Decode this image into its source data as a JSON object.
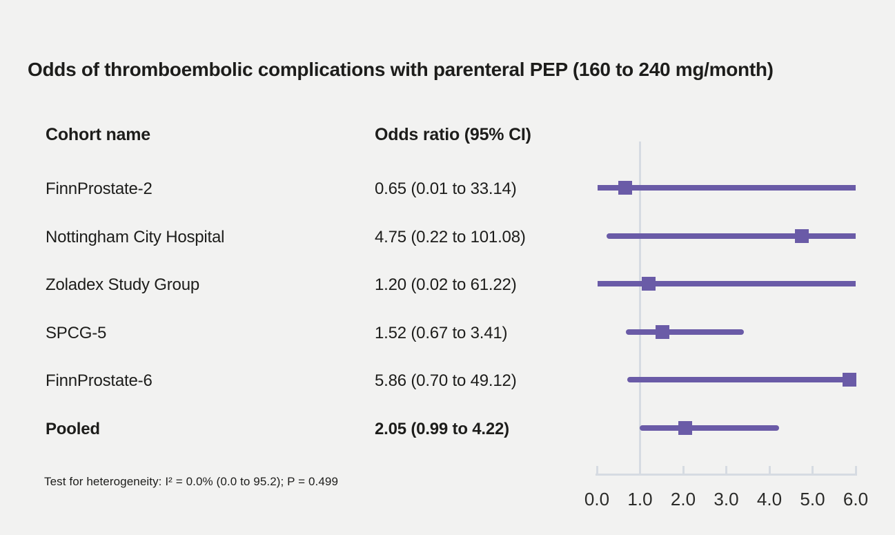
{
  "title": "Odds of thromboembolic complications with parenteral PEP (160 to 240 mg/month)",
  "columns": {
    "cohort": "Cohort name",
    "or": "Odds ratio (95% CI)"
  },
  "footnote": "Test for heterogeneity: I² = 0.0% (0.0 to 95.2); P = 0.499",
  "colors": {
    "accent": "#6A5BA7",
    "axis": "#D6DBE2",
    "background": "#F2F2F1",
    "text": "#1D1D1B"
  },
  "chart_data": {
    "type": "forest",
    "title": "Odds of thromboembolic complications with parenteral PEP (160 to 240 mg/month)",
    "x_axis": {
      "range": [
        0,
        6
      ],
      "tick_labels": [
        "0.0",
        "1.0",
        "2.0",
        "3.0",
        "4.0",
        "5.0",
        "6.0"
      ],
      "tick_values": [
        0,
        1,
        2,
        3,
        4,
        5,
        6
      ],
      "reference_line": 1.0
    },
    "rows": [
      {
        "cohort": "FinnProstate-2",
        "display": "0.65 (0.01 to 33.14)",
        "or": 0.65,
        "ci_low": 0.01,
        "ci_high": 33.14,
        "bold": false
      },
      {
        "cohort": "Nottingham City Hospital",
        "display": "4.75 (0.22 to 101.08)",
        "or": 4.75,
        "ci_low": 0.22,
        "ci_high": 101.08,
        "bold": false
      },
      {
        "cohort": "Zoladex Study Group",
        "display": "1.20 (0.02 to 61.22)",
        "or": 1.2,
        "ci_low": 0.02,
        "ci_high": 61.22,
        "bold": false
      },
      {
        "cohort": "SPCG-5",
        "display": "1.52 (0.67 to 3.41)",
        "or": 1.52,
        "ci_low": 0.67,
        "ci_high": 3.41,
        "bold": false
      },
      {
        "cohort": "FinnProstate-6",
        "display": "5.86 (0.70 to 49.12)",
        "or": 5.86,
        "ci_low": 0.7,
        "ci_high": 49.12,
        "bold": false
      },
      {
        "cohort": "Pooled",
        "display": "2.05 (0.99 to 4.22)",
        "or": 2.05,
        "ci_low": 0.99,
        "ci_high": 4.22,
        "bold": true
      }
    ]
  }
}
